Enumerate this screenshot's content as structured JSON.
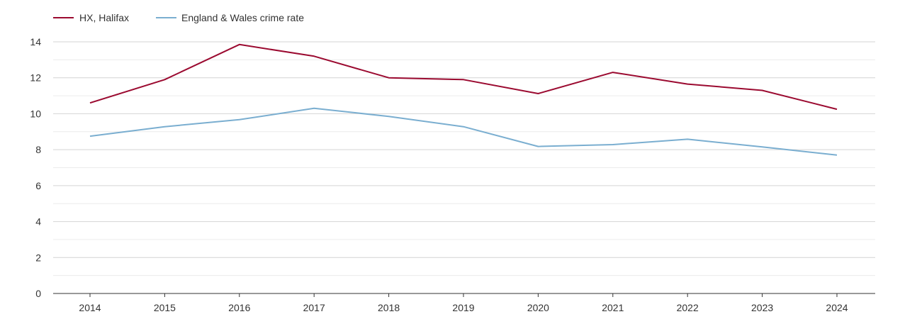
{
  "chart_data": {
    "type": "line",
    "title": "",
    "xlabel": "",
    "ylabel": "",
    "categories": [
      "2014",
      "2015",
      "2016",
      "2017",
      "2018",
      "2019",
      "2020",
      "2021",
      "2022",
      "2023",
      "2024"
    ],
    "series": [
      {
        "name": "HX, Halifax",
        "color": "#9b0a30",
        "values": [
          10.6,
          11.9,
          13.85,
          13.2,
          12.0,
          11.9,
          11.12,
          12.3,
          11.65,
          11.3,
          10.25
        ]
      },
      {
        "name": "England & Wales crime rate",
        "color": "#7aaed0",
        "values": [
          8.75,
          9.28,
          9.67,
          10.3,
          9.85,
          9.28,
          8.18,
          8.28,
          8.58,
          8.15,
          7.7
        ]
      }
    ],
    "ylim": [
      0,
      14
    ],
    "yticks": [
      0,
      2,
      4,
      6,
      8,
      10,
      12,
      14
    ],
    "grid": true,
    "legend": "top-left"
  }
}
